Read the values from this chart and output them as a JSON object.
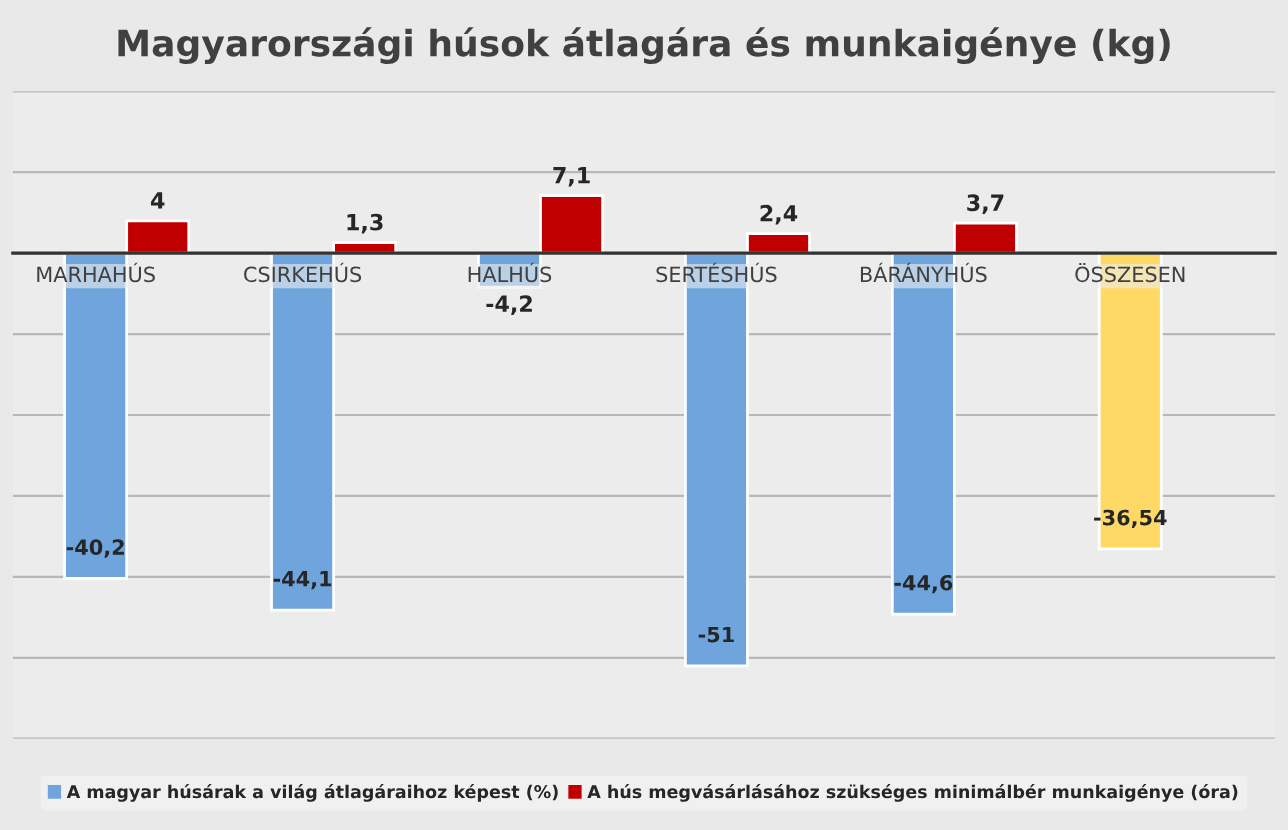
{
  "chart_data": {
    "type": "bar",
    "title": "Magyarországi húsok átlagára és munkaigénye (kg)",
    "categories": [
      "MARHAHÚS",
      "CSIRKEHÚS",
      "HALHÚS",
      "SERTÉSHÚS",
      "BÁRÁNYHÚS",
      "ÖSSZESEN"
    ],
    "series": [
      {
        "name": "A magyar húsárak a világ átlagáraihoz képest (%)",
        "color": "#6fa5dc",
        "colors": [
          "#6fa5dc",
          "#6fa5dc",
          "#6fa5dc",
          "#6fa5dc",
          "#6fa5dc",
          "#ffd966"
        ],
        "values": [
          -40.2,
          -44.1,
          -4.2,
          -51,
          -44.6,
          -36.54
        ],
        "value_labels": [
          "-40,2",
          "-44,1",
          "-4,2",
          "-51",
          "-44,6",
          "-36,54"
        ]
      },
      {
        "name": "A hús megvásárlásához szükséges minimálbér munkaigénye (óra)",
        "color": "#c00000",
        "values": [
          4,
          1.3,
          7.1,
          2.4,
          3.7,
          null
        ],
        "value_labels": [
          "4",
          "1,3",
          "7,1",
          "2,4",
          "3,7",
          null
        ]
      }
    ],
    "ylim": [
      -60,
      20
    ],
    "yticks": [
      {
        "value": -60,
        "label": null
      },
      {
        "value": -50,
        "label": null
      },
      {
        "value": -40,
        "label": null
      },
      {
        "value": -30,
        "label": null
      },
      {
        "value": -20,
        "label": null
      },
      {
        "value": -10,
        "label": null
      },
      {
        "value": 0,
        "label": null
      },
      {
        "value": 10,
        "label": null
      },
      {
        "value": 20,
        "label": null
      }
    ],
    "grid": "y",
    "legend": "bottom",
    "tick_labels": "x"
  }
}
